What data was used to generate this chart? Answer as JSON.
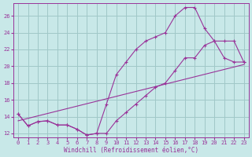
{
  "xlabel": "Windchill (Refroidissement éolien,°C)",
  "bg_color": "#c8e8e8",
  "grid_color": "#a0c8c8",
  "line_color": "#993399",
  "xlim": [
    -0.5,
    23.5
  ],
  "ylim": [
    11.5,
    27.5
  ],
  "yticks": [
    12,
    14,
    16,
    18,
    20,
    22,
    24,
    26
  ],
  "xticks": [
    0,
    1,
    2,
    3,
    4,
    5,
    6,
    7,
    8,
    9,
    10,
    11,
    12,
    13,
    14,
    15,
    16,
    17,
    18,
    19,
    20,
    21,
    22,
    23
  ],
  "line1_x": [
    0,
    1,
    2,
    3,
    4,
    5,
    6,
    7,
    8,
    9,
    10,
    11,
    12,
    13,
    14,
    15,
    16,
    17,
    18,
    19,
    20,
    21,
    22,
    23
  ],
  "line1_y": [
    14.3,
    12.9,
    13.4,
    13.5,
    13.0,
    13.0,
    12.5,
    11.8,
    12.0,
    15.5,
    19.0,
    20.5,
    22.0,
    23.0,
    23.5,
    24.0,
    26.0,
    27.0,
    27.0,
    24.5,
    23.0,
    23.0,
    23.0,
    20.5
  ],
  "line2_x": [
    0,
    1,
    2,
    3,
    4,
    5,
    6,
    7,
    8,
    9,
    10,
    11,
    12,
    13,
    14,
    15,
    16,
    17,
    18,
    19,
    20,
    21,
    22,
    23
  ],
  "line2_y": [
    14.3,
    12.9,
    13.4,
    13.5,
    13.0,
    13.0,
    12.5,
    11.8,
    12.0,
    12.0,
    13.5,
    14.5,
    15.5,
    16.5,
    17.5,
    18.0,
    19.5,
    21.0,
    21.0,
    22.5,
    23.0,
    21.0,
    20.5,
    20.5
  ],
  "line3_x": [
    0,
    23
  ],
  "line3_y": [
    13.5,
    20.2
  ]
}
